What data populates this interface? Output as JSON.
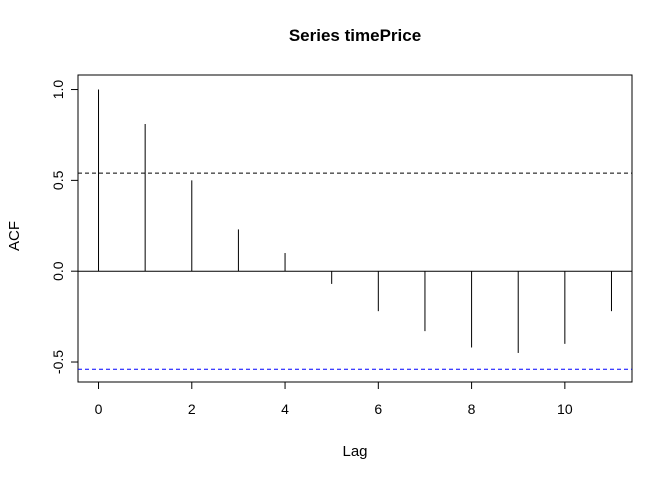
{
  "chart_data": {
    "type": "bar",
    "title": "Series  timePrice",
    "xlabel": "Lag",
    "ylabel": "ACF",
    "lags": [
      0,
      1,
      2,
      3,
      4,
      5,
      6,
      7,
      8,
      9,
      10,
      11
    ],
    "values": [
      1.0,
      0.81,
      0.5,
      0.23,
      0.1,
      -0.07,
      -0.22,
      -0.33,
      -0.42,
      -0.45,
      -0.4,
      -0.22
    ],
    "xlim": [
      -0.44,
      11.44
    ],
    "ylim": [
      -0.61,
      1.08
    ],
    "x_ticks": [
      0,
      2,
      4,
      6,
      8,
      10
    ],
    "x_tick_labels": [
      "0",
      "2",
      "4",
      "6",
      "8",
      "10"
    ],
    "y_ticks": [
      -0.5,
      0.0,
      0.5,
      1.0
    ],
    "y_tick_labels": [
      "-0.5",
      "0.0",
      "0.5",
      "1.0"
    ],
    "confidence_upper": 0.54,
    "confidence_lower": -0.54,
    "confidence_upper_color": "#000000",
    "confidence_lower_color": "#0000ff",
    "zero_line": 0,
    "grid": false,
    "legend": "none"
  }
}
